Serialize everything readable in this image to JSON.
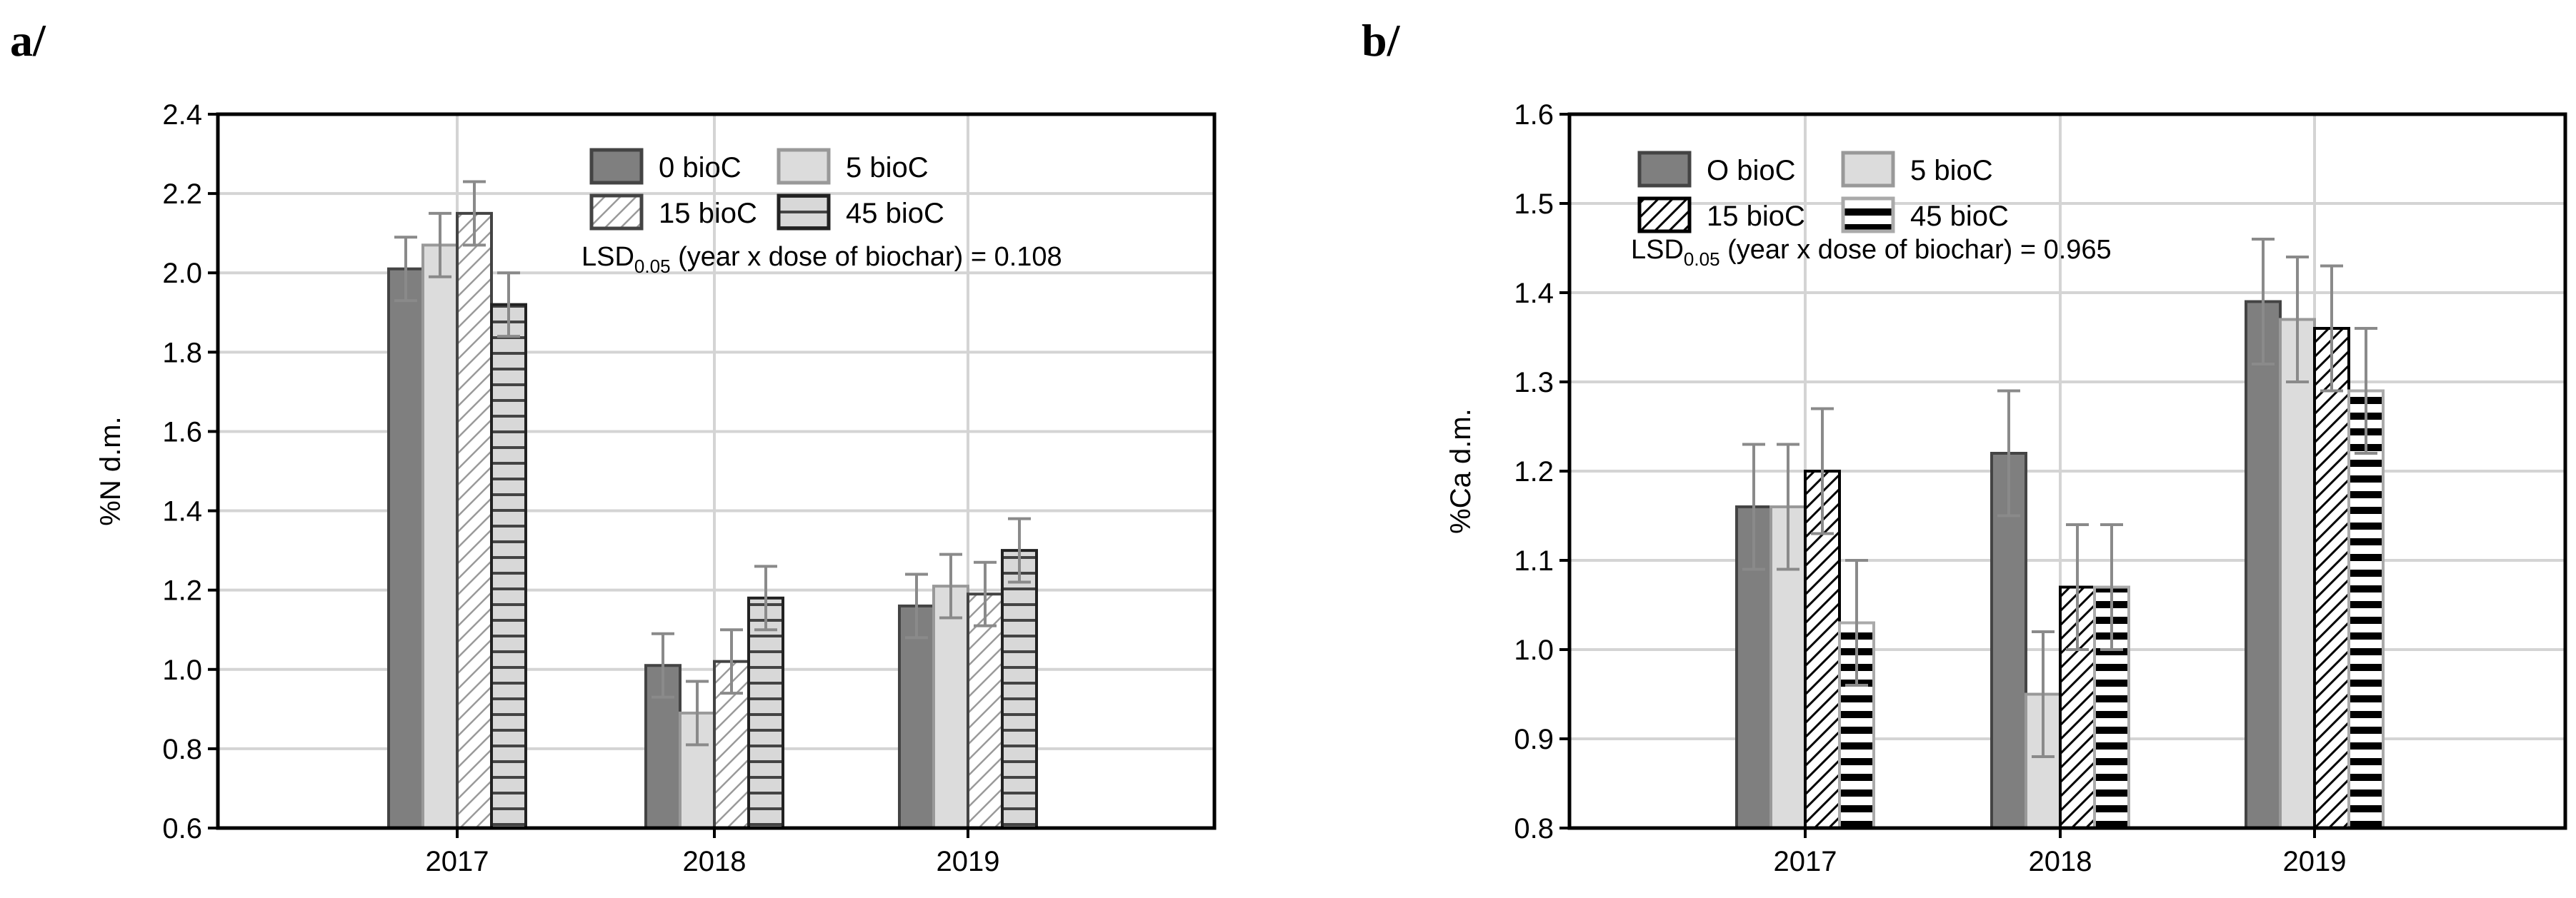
{
  "chart_data": [
    {
      "type": "bar",
      "panel_label": "a/",
      "title": "",
      "xlabel": "",
      "ylabel": "%N d.m.",
      "categories": [
        "2017",
        "2018",
        "2019"
      ],
      "ylim": [
        0.6,
        2.4
      ],
      "yticks": [
        "0.6",
        "0.8",
        "1.0",
        "1.2",
        "1.4",
        "1.6",
        "1.8",
        "2.0",
        "2.2",
        "2.4"
      ],
      "grid": true,
      "legend_position": "top-right",
      "annotation": {
        "prefix": "LSD",
        "sub": "0.05",
        "suffix": " (year x dose of biochar) = 0.108"
      },
      "series": [
        {
          "name": "0 bioC",
          "fill": "#7f7f7f",
          "stroke": "#444444",
          "pattern": "solid",
          "values": [
            2.01,
            1.01,
            1.16
          ],
          "errors": [
            0.08,
            0.08,
            0.08
          ]
        },
        {
          "name": "5 bioC",
          "fill": "#dcdcdc",
          "stroke": "#999999",
          "pattern": "solid",
          "values": [
            2.07,
            0.89,
            1.21
          ],
          "errors": [
            0.08,
            0.08,
            0.08
          ]
        },
        {
          "name": "15 bioC",
          "fill": "#ffffff",
          "stroke": "#444444",
          "pattern": "hatch-light",
          "values": [
            2.15,
            1.02,
            1.19
          ],
          "errors": [
            0.08,
            0.08,
            0.08
          ]
        },
        {
          "name": "45 bioC",
          "fill": "#d0d0d0",
          "stroke": "#222222",
          "pattern": "hlines-gray",
          "values": [
            1.92,
            1.18,
            1.3
          ],
          "errors": [
            0.08,
            0.08,
            0.08
          ]
        }
      ]
    },
    {
      "type": "bar",
      "panel_label": "b/",
      "title": "",
      "xlabel": "",
      "ylabel": "%Ca d.m.",
      "categories": [
        "2017",
        "2018",
        "2019"
      ],
      "ylim": [
        0.8,
        1.6
      ],
      "yticks": [
        "0.8",
        "0.9",
        "1.0",
        "1.1",
        "1.2",
        "1.3",
        "1.4",
        "1.5",
        "1.6"
      ],
      "grid": true,
      "legend_position": "top-left",
      "annotation": {
        "prefix": "LSD",
        "sub": "0.05",
        "suffix": " (year x dose of biochar) = 0.965"
      },
      "series": [
        {
          "name": "O bioC",
          "fill": "#7f7f7f",
          "stroke": "#444444",
          "pattern": "solid",
          "values": [
            1.16,
            1.22,
            1.39
          ],
          "errors": [
            0.07,
            0.07,
            0.07
          ]
        },
        {
          "name": "5 bioC",
          "fill": "#dcdcdc",
          "stroke": "#999999",
          "pattern": "solid",
          "values": [
            1.16,
            0.95,
            1.37
          ],
          "errors": [
            0.07,
            0.07,
            0.07
          ]
        },
        {
          "name": "15 bioC",
          "fill": "#ffffff",
          "stroke": "#000000",
          "pattern": "hatch-dark",
          "values": [
            1.2,
            1.07,
            1.36
          ],
          "errors": [
            0.07,
            0.07,
            0.07
          ]
        },
        {
          "name": "45 bioC",
          "fill": "#ffffff",
          "stroke": "#aaaaaa",
          "pattern": "hlines-black",
          "values": [
            1.03,
            1.07,
            1.29
          ],
          "errors": [
            0.07,
            0.07,
            0.07
          ]
        }
      ]
    }
  ]
}
